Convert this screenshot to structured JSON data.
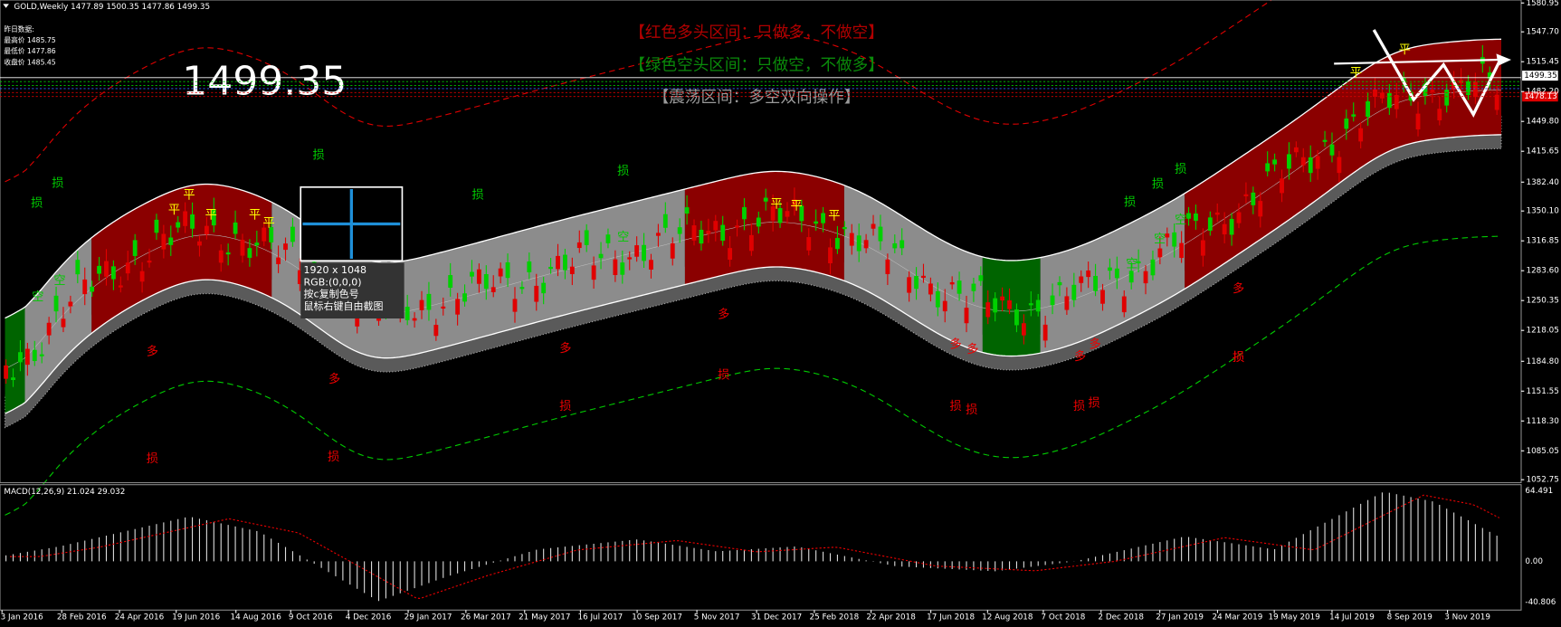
{
  "header": {
    "symbol": "GOLD,Weekly  1477.89 1500.35 1477.86 1499.35"
  },
  "info_box": {
    "title": "昨日数据:",
    "high": "最高价 1485.75",
    "low": "最低价 1477.86",
    "close": "收盘价 1485.45"
  },
  "big_price": "1499.35",
  "legend_notes": [
    "【红色多头区间：只做多，不做空】",
    "【绿色空头区间：只做空，不做多】",
    "【震荡区间：多空双向操作】"
  ],
  "capture_popup": {
    "size": "1920 x 1048",
    "rgb": "RGB:(0,0,0)",
    "copy_hint": "按c复制色号",
    "capture_hint": "鼠标右键自由截图"
  },
  "price_axis_labels": [
    "1580.95",
    "1547.70",
    "1515.45",
    "1482.20",
    "1449.80",
    "1415.65",
    "1382.40",
    "1350.10",
    "1316.85",
    "1283.60",
    "1250.35",
    "1218.05",
    "1184.80",
    "1151.55",
    "1118.30",
    "1085.05",
    "1052.75"
  ],
  "price_current": "1499.35",
  "price_red": "1478.13",
  "macd": {
    "title": "MACD(12,26,9) 21.024 29.032",
    "axis_labels": [
      "64.491",
      "0.00",
      "-40.806"
    ]
  },
  "x_axis_labels": [
    "3 Jan 2016",
    "28 Feb 2016",
    "24 Apr 2016",
    "19 Jun 2016",
    "14 Aug 2016",
    "9 Oct 2016",
    "4 Dec 2016",
    "29 Jan 2017",
    "26 Mar 2017",
    "21 May 2017",
    "16 Jul 2017",
    "10 Sep 2017",
    "5 Nov 2017",
    "31 Dec 2017",
    "25 Feb 2018",
    "22 Apr 2018",
    "17 Jun 2018",
    "12 Aug 2018",
    "7 Oct 2018",
    "2 Dec 2018",
    "27 Jan 2019",
    "24 Mar 2019",
    "19 May 2019",
    "14 Jul 2019",
    "8 Sep 2019",
    "3 Nov 2019"
  ],
  "signals": [
    "损",
    "损",
    "空",
    "空",
    "平",
    "平",
    "平",
    "平",
    "平",
    "损",
    "损",
    "损",
    "空",
    "平",
    "平",
    "平",
    "损",
    "损",
    "损",
    "空",
    "空",
    "空",
    "平",
    "平",
    "多",
    "多",
    "多",
    "多",
    "多",
    "多",
    "多",
    "多",
    "多",
    "损",
    "损",
    "损",
    "损",
    "损",
    "损",
    "损",
    "损",
    "损",
    "损"
  ]
}
